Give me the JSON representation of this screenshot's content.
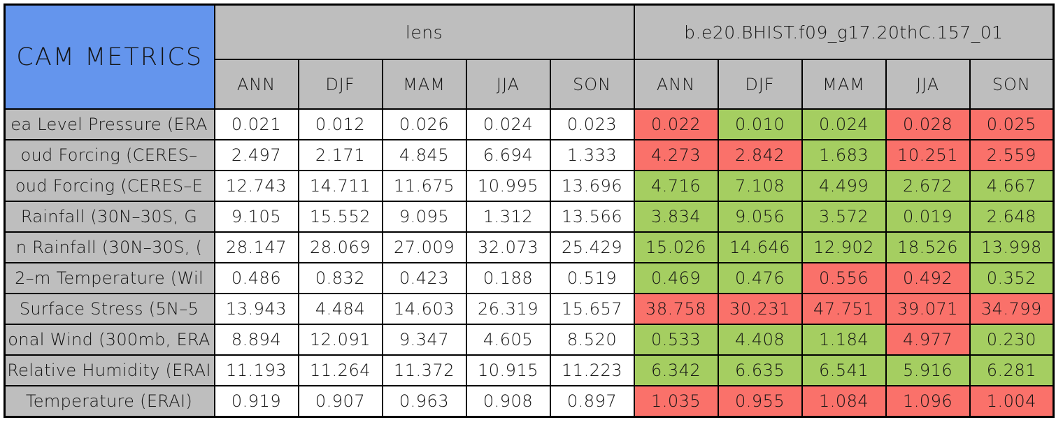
{
  "palette": {
    "title-blue": "#6495ED",
    "header-grey": "#BEBEBE",
    "grid": "#000000",
    "cell-good": "#A5CE61",
    "cell-bad": "#FA716A"
  },
  "chart_data": {
    "type": "table",
    "title": "CAM METRICS",
    "column_groups": [
      "lens",
      "b.e20.BHIST.f09_g17.20thC.157_01"
    ],
    "seasons": [
      "ANN",
      "DJF",
      "MAM",
      "JJA",
      "SON"
    ],
    "status_legend": {
      "good": "green cell",
      "bad": "red cell"
    },
    "rows": [
      {
        "label": "ea Level Pressure (ERA",
        "lens": [
          "0.021",
          "0.012",
          "0.026",
          "0.024",
          "0.023"
        ],
        "case": [
          {
            "v": "0.022",
            "c": "bad"
          },
          {
            "v": "0.010",
            "c": "good"
          },
          {
            "v": "0.024",
            "c": "good"
          },
          {
            "v": "0.028",
            "c": "bad"
          },
          {
            "v": "0.025",
            "c": "bad"
          }
        ]
      },
      {
        "label": "oud Forcing (CERES–",
        "lens": [
          "2.497",
          "2.171",
          "4.845",
          "6.694",
          "1.333"
        ],
        "case": [
          {
            "v": "4.273",
            "c": "bad"
          },
          {
            "v": "2.842",
            "c": "bad"
          },
          {
            "v": "1.683",
            "c": "good"
          },
          {
            "v": "10.251",
            "c": "bad"
          },
          {
            "v": "2.559",
            "c": "bad"
          }
        ]
      },
      {
        "label": "oud Forcing (CERES–E",
        "lens": [
          "12.743",
          "14.711",
          "11.675",
          "10.995",
          "13.696"
        ],
        "case": [
          {
            "v": "4.716",
            "c": "good"
          },
          {
            "v": "7.108",
            "c": "good"
          },
          {
            "v": "4.499",
            "c": "good"
          },
          {
            "v": "2.672",
            "c": "good"
          },
          {
            "v": "4.667",
            "c": "good"
          }
        ]
      },
      {
        "label": "Rainfall (30N–30S, G",
        "lens": [
          "9.105",
          "15.552",
          "9.095",
          "1.312",
          "13.566"
        ],
        "case": [
          {
            "v": "3.834",
            "c": "good"
          },
          {
            "v": "9.056",
            "c": "good"
          },
          {
            "v": "3.572",
            "c": "good"
          },
          {
            "v": "0.019",
            "c": "good"
          },
          {
            "v": "2.648",
            "c": "good"
          }
        ]
      },
      {
        "label": "n Rainfall (30N–30S, (",
        "lens": [
          "28.147",
          "28.069",
          "27.009",
          "32.073",
          "25.429"
        ],
        "case": [
          {
            "v": "15.026",
            "c": "good"
          },
          {
            "v": "14.646",
            "c": "good"
          },
          {
            "v": "12.902",
            "c": "good"
          },
          {
            "v": "18.526",
            "c": "good"
          },
          {
            "v": "13.998",
            "c": "good"
          }
        ]
      },
      {
        "label": "2–m Temperature (Wil",
        "lens": [
          "0.486",
          "0.832",
          "0.423",
          "0.188",
          "0.519"
        ],
        "case": [
          {
            "v": "0.469",
            "c": "good"
          },
          {
            "v": "0.476",
            "c": "good"
          },
          {
            "v": "0.556",
            "c": "bad"
          },
          {
            "v": "0.492",
            "c": "bad"
          },
          {
            "v": "0.352",
            "c": "good"
          }
        ]
      },
      {
        "label": "Surface Stress (5N–5",
        "lens": [
          "13.943",
          "4.484",
          "14.603",
          "26.319",
          "15.657"
        ],
        "case": [
          {
            "v": "38.758",
            "c": "bad"
          },
          {
            "v": "30.231",
            "c": "bad"
          },
          {
            "v": "47.751",
            "c": "bad"
          },
          {
            "v": "39.071",
            "c": "bad"
          },
          {
            "v": "34.799",
            "c": "bad"
          }
        ]
      },
      {
        "label": "onal Wind (300mb, ERA",
        "lens": [
          "8.894",
          "12.091",
          "9.347",
          "4.605",
          "8.520"
        ],
        "case": [
          {
            "v": "0.533",
            "c": "good"
          },
          {
            "v": "4.408",
            "c": "good"
          },
          {
            "v": "1.184",
            "c": "good"
          },
          {
            "v": "4.977",
            "c": "bad"
          },
          {
            "v": "0.230",
            "c": "good"
          }
        ]
      },
      {
        "label": "Relative Humidity (ERAI",
        "lens": [
          "11.193",
          "11.264",
          "11.372",
          "10.915",
          "11.223"
        ],
        "case": [
          {
            "v": "6.342",
            "c": "good"
          },
          {
            "v": "6.635",
            "c": "good"
          },
          {
            "v": "6.541",
            "c": "good"
          },
          {
            "v": "5.916",
            "c": "good"
          },
          {
            "v": "6.281",
            "c": "good"
          }
        ]
      },
      {
        "label": "Temperature (ERAI)",
        "lens": [
          "0.919",
          "0.907",
          "0.963",
          "0.908",
          "0.897"
        ],
        "case": [
          {
            "v": "1.035",
            "c": "bad"
          },
          {
            "v": "0.955",
            "c": "bad"
          },
          {
            "v": "1.084",
            "c": "bad"
          },
          {
            "v": "1.096",
            "c": "bad"
          },
          {
            "v": "1.004",
            "c": "bad"
          }
        ]
      }
    ]
  }
}
